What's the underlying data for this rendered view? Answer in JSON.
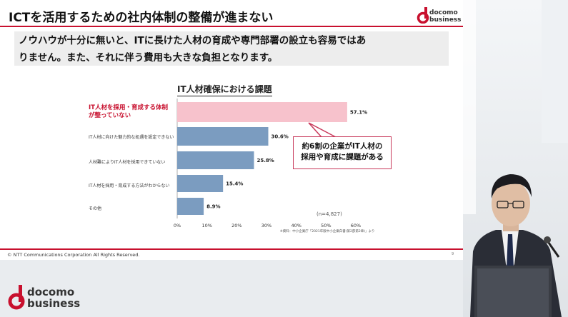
{
  "slide": {
    "title": "ICTを活用するための社内体制の整備が進まない",
    "logo_text_line1": "docomo",
    "logo_text_line2": "business",
    "banner_line1": "ノウハウが十分に無いと、ITに長けた人材の育成や専門部署の設立も容易ではあ",
    "banner_line2": "りません。また、それに伴う費用も大きな負担となります。",
    "callout_line1": "約6割の企業がIT人材の",
    "callout_line2": "採用や育成に課題がある",
    "sample_size": "(n=4,827)",
    "source": "※資料：中小企業庁「2021年版中小企業白書(第2部第2章)」より",
    "copyright": "© NTT Communications Corporation All Rights Reserved.",
    "page_number": "9"
  },
  "chart_data": {
    "type": "bar",
    "orientation": "horizontal",
    "title": "IT人材確保における課題",
    "categories": [
      "IT人材を採用・育成する体制が整っていない",
      "IT人材に向けた魅力的な処遇を設定できない",
      "人材難によりIT人材を採用できていない",
      "IT人材を採用・育成する方法がわからない",
      "その他"
    ],
    "values": [
      57.1,
      30.6,
      25.8,
      15.4,
      8.9
    ],
    "value_labels": [
      "57.1%",
      "30.6%",
      "25.8%",
      "15.4%",
      "8.9%"
    ],
    "x_ticks": [
      "0%",
      "10%",
      "20%",
      "30%",
      "40%",
      "50%",
      "60%"
    ],
    "xlim": [
      0,
      60
    ],
    "highlight_index": 0,
    "colors": {
      "highlight": "#f7c2cc",
      "bar": "#7b9cc0",
      "highlight_text": "#c8102e"
    }
  },
  "background": {
    "logo_line1": "docomo",
    "logo_line2": "business"
  }
}
